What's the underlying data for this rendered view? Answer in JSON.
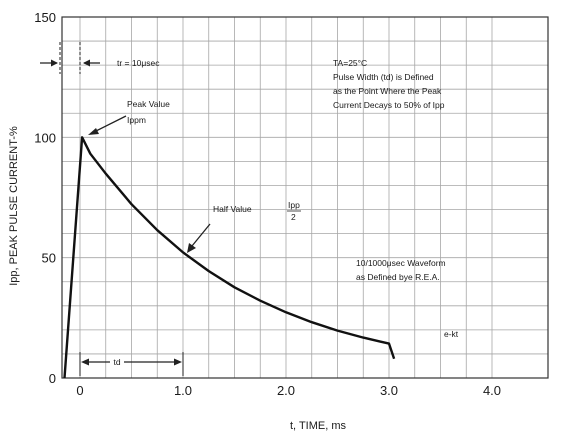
{
  "chart_data": {
    "type": "line",
    "xlabel": "t, TIME, ms",
    "ylabel": "Ipp, PEAK PULSE CURRENT-%",
    "xlim": [
      -0.15,
      4.0
    ],
    "ylim": [
      0,
      150
    ],
    "x_ticks": [
      0,
      1.0,
      2.0,
      3.0,
      4.0
    ],
    "x_tick_labels": [
      "0",
      "1.0",
      "2.0",
      "3.0",
      "4.0"
    ],
    "y_ticks": [
      0,
      50,
      100,
      150
    ],
    "y_tick_labels": [
      "0",
      "50",
      "100",
      "150"
    ],
    "grid": true,
    "series": [
      {
        "x": [
          -0.15,
          0.02,
          0.1,
          0.25,
          0.5,
          0.75,
          1.0,
          1.25,
          1.5,
          1.75,
          2.0,
          2.25,
          2.5,
          2.75,
          3.0,
          3.05
        ],
        "y": [
          0,
          100,
          93.2,
          84.9,
          72.2,
          61.4,
          52.2,
          44.4,
          37.7,
          32.1,
          27.3,
          23.2,
          19.7,
          16.8,
          14.3,
          8
        ],
        "color": "#111111"
      }
    ],
    "annotations": {
      "tr": "tr = 10μsec",
      "peak_line1": "Peak Value",
      "peak_line2": "Ippm",
      "half_line1": "Half Value",
      "half_frac_num": "Ipp",
      "half_frac_den": "2",
      "td": "td",
      "ekt": "e-kt",
      "cond1": "TA=25°C",
      "cond2": "Pulse Width (td) is Defined",
      "cond3": "as the Point Where the Peak",
      "cond4": "Current Decays to 50% of Ipp",
      "wave1": "10/1000μsec Waveform",
      "wave2": "as Defined bye R.E.A."
    }
  }
}
